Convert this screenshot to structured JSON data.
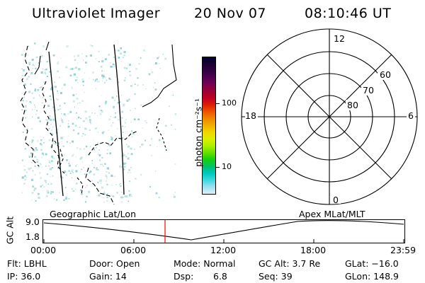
{
  "header": {
    "title": "Ultraviolet Imager",
    "date": "20 Nov 07",
    "time": "08:10:46 UT"
  },
  "colorbar": {
    "unit_label": "photon cm⁻²s⁻¹",
    "ticks": [
      "100",
      "10"
    ],
    "colors": [
      "#000033",
      "#1a0033",
      "#330044",
      "#550055",
      "#7a0050",
      "#a00030",
      "#c00020",
      "#dd2000",
      "#ee5500",
      "#f08800",
      "#f0b000",
      "#f0d800",
      "#d8f000",
      "#a8f000",
      "#60e000",
      "#10d010",
      "#00c070",
      "#00c8c0",
      "#40d8e0",
      "#a0e0f0",
      "#e0f0f8"
    ]
  },
  "polar": {
    "mlt_labels": {
      "top": "12",
      "bottom": "0",
      "left": "18",
      "right": "6"
    },
    "lat_labels": [
      "60",
      "70",
      "80"
    ]
  },
  "timeline": {
    "left_caption": "Geographic Lat/Lon",
    "right_caption": "Apex MLat/MLT",
    "y_axis_label": "GC Alt",
    "y_ticks": [
      "9.0",
      "1.8"
    ],
    "x_ticks": [
      "00:00",
      "06:00",
      "12:00",
      "18:00",
      "23:59"
    ],
    "marker_color": "#ff0000"
  },
  "status": {
    "flt": "Flt: LBHL",
    "ip": "IP: 36.0",
    "door": "Door: Open",
    "gain": "Gain: 14",
    "mode": "Mode: Normal",
    "dsp_label": "Dsp:",
    "dsp_value": "6.8",
    "gc_alt": "GC Alt: 3.7 Re",
    "seq": "Seq: 39",
    "glat": "GLat: −16.0",
    "glon": "GLon: 148.9"
  }
}
